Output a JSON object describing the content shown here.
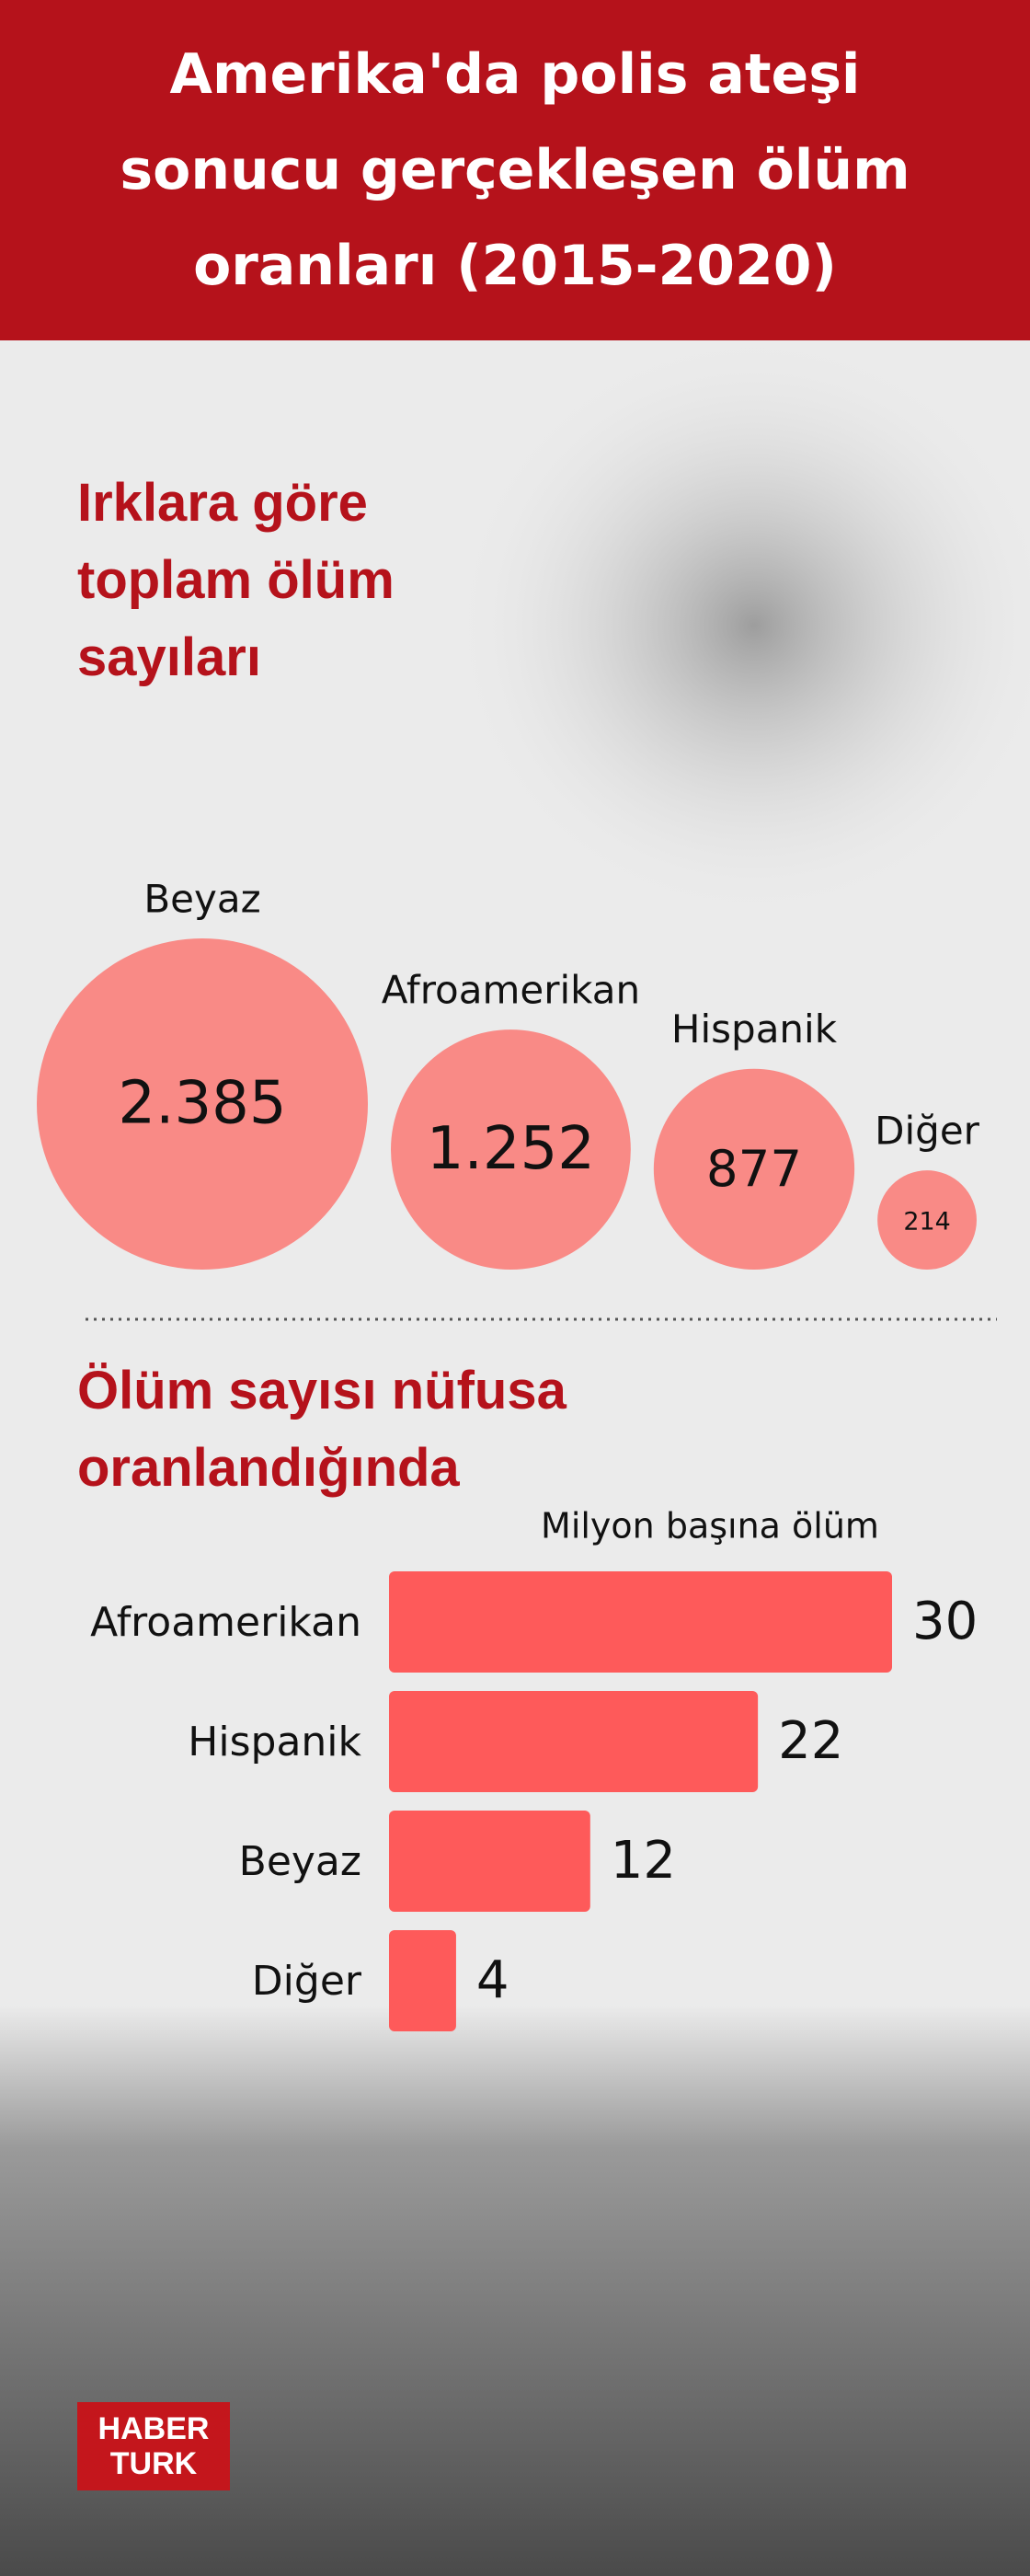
{
  "header": {
    "title": "Amerika'da polis ateşi sonucu gerçekleşen ölüm oranları (2015-2020)"
  },
  "chart_data": [
    {
      "type": "bubble",
      "title": "Irklara göre toplam ölüm sayıları",
      "categories": [
        "Beyaz",
        "Afroamerikan",
        "Hispanik",
        "Diğer"
      ],
      "values": [
        2385,
        1252,
        877,
        214
      ],
      "value_labels": [
        "2.385",
        "1.252",
        "877",
        "214"
      ],
      "color": "#f98a86"
    },
    {
      "type": "bar",
      "title": "Ölüm sayısı nüfusa oranlandığında",
      "subtitle": "Milyon başına ölüm",
      "categories": [
        "Afroamerikan",
        "Hispanik",
        "Beyaz",
        "Diğer"
      ],
      "values": [
        30,
        22,
        12,
        4
      ],
      "color": "#fe5a5a"
    }
  ],
  "logo": {
    "line1": "HABER",
    "line2": "TURK"
  }
}
